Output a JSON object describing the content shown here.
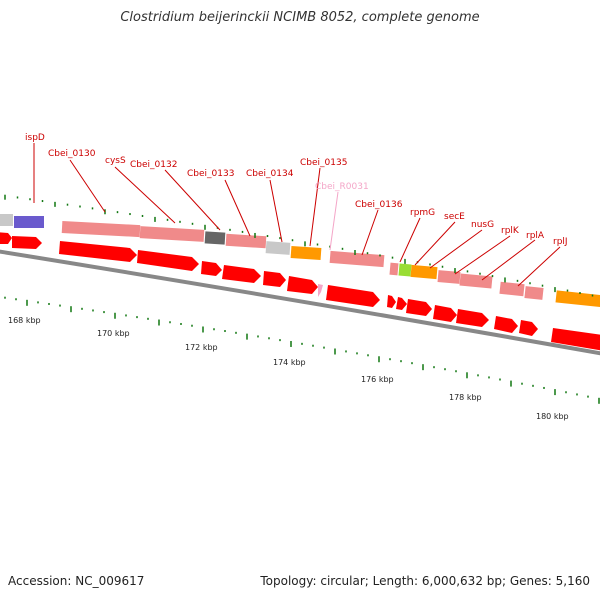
{
  "header": {
    "title": "Clostridium beijerinckii NCIMB 8052, complete genome"
  },
  "footer": {
    "accession": "Accession: NC_009617",
    "summary": "Topology: circular; Length: 6,000,632 bp; Genes: 5,160"
  },
  "scale_labels": [
    "168 kbp",
    "170 kbp",
    "172 kbp",
    "174 kbp",
    "176 kbp",
    "178 kbp",
    "180 kbp"
  ],
  "gene_labels": [
    {
      "text": "ispD",
      "color": "#cc0000"
    },
    {
      "text": "Cbei_0130",
      "color": "#cc0000"
    },
    {
      "text": "cysS",
      "color": "#cc0000"
    },
    {
      "text": "Cbei_0132",
      "color": "#cc0000"
    },
    {
      "text": "Cbei_0133",
      "color": "#cc0000"
    },
    {
      "text": "Cbei_0134",
      "color": "#cc0000"
    },
    {
      "text": "Cbei_0135",
      "color": "#cc0000"
    },
    {
      "text": "Cbei_R0031",
      "color": "#f4a6c8"
    },
    {
      "text": "Cbei_0136",
      "color": "#cc0000"
    },
    {
      "text": "rpmG",
      "color": "#cc0000"
    },
    {
      "text": "secE",
      "color": "#cc0000"
    },
    {
      "text": "nusG",
      "color": "#cc0000"
    },
    {
      "text": "rplK",
      "color": "#cc0000"
    },
    {
      "text": "rplA",
      "color": "#cc0000"
    },
    {
      "text": "rplJ",
      "color": "#cc0000"
    }
  ],
  "colors": {
    "cds_arrow": "#ff0000",
    "gene_bar_default": "#f08a8a",
    "gene_bar_grey": "#c8c8c8",
    "gene_bar_dark": "#666666",
    "gene_bar_orange": "#ff9900",
    "gene_bar_purple": "#6a5acd",
    "gene_bar_green": "#99dd33",
    "backbone": "#888888",
    "tick": "#117711"
  }
}
